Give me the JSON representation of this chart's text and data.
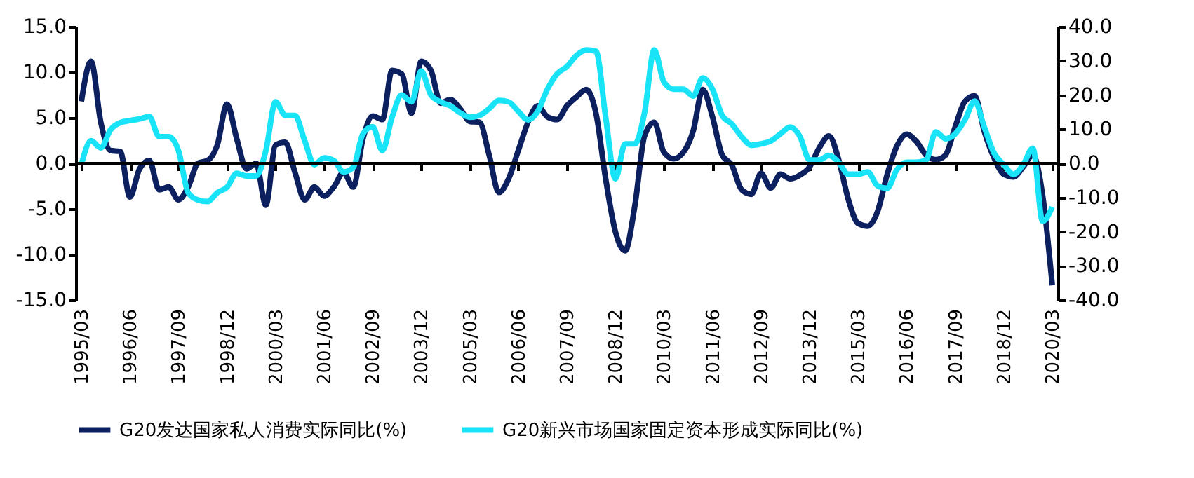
{
  "chart_data": {
    "type": "line",
    "categories": [
      "1995/03",
      null,
      null,
      null,
      null,
      "1996/06",
      null,
      null,
      null,
      null,
      "1997/09",
      null,
      null,
      null,
      null,
      "1998/12",
      null,
      null,
      null,
      null,
      "2000/03",
      null,
      null,
      null,
      null,
      "2001/06",
      null,
      null,
      null,
      null,
      "2002/09",
      null,
      null,
      null,
      null,
      "2003/12",
      null,
      null,
      null,
      null,
      "2005/03",
      null,
      null,
      null,
      null,
      "2006/06",
      null,
      null,
      null,
      null,
      "2007/09",
      null,
      null,
      null,
      null,
      "2008/12",
      null,
      null,
      null,
      null,
      "2010/03",
      null,
      null,
      null,
      null,
      "2011/06",
      null,
      null,
      null,
      null,
      "2012/09",
      null,
      null,
      null,
      null,
      "2013/12",
      null,
      null,
      null,
      null,
      "2015/03",
      null,
      null,
      null,
      null,
      "2016/06",
      null,
      null,
      null,
      null,
      "2017/09",
      null,
      null,
      null,
      null,
      "2018/12",
      null,
      null,
      null,
      null,
      "2020/03"
    ],
    "series": [
      {
        "name": "G20发达国家私人消费实际同比(%)",
        "color": "#0c2060",
        "values": [
          6.8,
          11.2,
          4.5,
          1.4,
          1.3,
          -3.7,
          -0.6,
          0.3,
          -2.9,
          -2.6,
          -4.0,
          -2.6,
          0.0,
          0.3,
          2.0,
          6.5,
          2.7,
          -0.6,
          0.0,
          -4.6,
          2.0,
          2.3,
          -1.0,
          -4.0,
          -2.6,
          -3.6,
          -2.6,
          -1.0,
          -2.6,
          2.7,
          5.2,
          4.8,
          10.2,
          9.8,
          5.5,
          11.2,
          10.2,
          6.6,
          7.0,
          6.0,
          4.6,
          4.5,
          0.9,
          -3.2,
          -1.7,
          1.4,
          4.5,
          6.3,
          5.1,
          4.8,
          6.3,
          7.3,
          8.1,
          5.5,
          -1.7,
          -7.5,
          -9.6,
          -4.7,
          3.0,
          4.5,
          1.2,
          0.5,
          1.2,
          3.5,
          8.1,
          5.1,
          0.9,
          -0.2,
          -2.9,
          -3.4,
          -1.1,
          -2.7,
          -1.2,
          -1.7,
          -1.3,
          -0.4,
          1.7,
          3.0,
          0.4,
          -4.0,
          -6.6,
          -6.9,
          -5.3,
          -1.2,
          1.9,
          3.2,
          2.4,
          0.9,
          0.4,
          0.9,
          4.0,
          6.8,
          7.4,
          3.5,
          0.6,
          -1.2,
          -1.5,
          -0.4,
          0.9,
          -3.5,
          -13.4
        ]
      },
      {
        "name": "G20新兴市场国家固定资本形成实际同比(%)",
        "color": "#19e3f7",
        "axis": "y2",
        "values": [
          -0.4,
          6.6,
          4.5,
          9.8,
          11.9,
          12.5,
          13.0,
          13.7,
          7.8,
          7.8,
          3.7,
          -8.6,
          -10.7,
          -11.2,
          -8.6,
          -7.0,
          -2.9,
          -3.7,
          -3.7,
          3.7,
          18.0,
          14.0,
          14.0,
          6.6,
          -0.4,
          1.6,
          0.8,
          -2.5,
          -1.2,
          8.6,
          10.7,
          3.7,
          13.5,
          20.0,
          18.0,
          27.0,
          20.0,
          18.0,
          16.8,
          14.8,
          13.5,
          14.0,
          16.0,
          18.4,
          18.0,
          15.2,
          12.7,
          15.2,
          21.7,
          26.2,
          28.3,
          31.6,
          33.2,
          32.8,
          13.5,
          -4.5,
          5.7,
          5.7,
          14.8,
          33.2,
          23.8,
          21.7,
          21.7,
          19.7,
          25.0,
          21.7,
          14.0,
          11.5,
          7.8,
          5.3,
          5.7,
          6.5,
          8.6,
          10.6,
          7.9,
          1.0,
          1.0,
          2.3,
          0.3,
          -3.2,
          -3.2,
          -2.5,
          -6.6,
          -7.3,
          -1.8,
          0.3,
          0.3,
          1.0,
          9.2,
          7.2,
          8.6,
          12.7,
          18.2,
          10.6,
          3.0,
          -0.4,
          -3.2,
          -0.4,
          4.4,
          -17.0,
          -12.8
        ]
      }
    ],
    "ylim": [
      -15,
      15
    ],
    "yticks": [
      {
        "value": -15,
        "label": "-15.0"
      },
      {
        "value": -10,
        "label": "-10.0"
      },
      {
        "value": -5,
        "label": "-5.0"
      },
      {
        "value": 0,
        "label": "0.0"
      },
      {
        "value": 5,
        "label": "5.0"
      },
      {
        "value": 10,
        "label": "10.0"
      },
      {
        "value": 15,
        "label": "15.0"
      }
    ],
    "y2lim": [
      -40,
      40
    ],
    "y2ticks": [
      {
        "value": -40,
        "label": "-40.0"
      },
      {
        "value": -30,
        "label": "-30.0"
      },
      {
        "value": -20,
        "label": "-20.0"
      },
      {
        "value": -10,
        "label": "-10.0"
      },
      {
        "value": 0,
        "label": "0.0"
      },
      {
        "value": 10,
        "label": "10.0"
      },
      {
        "value": 20,
        "label": "20.0"
      },
      {
        "value": 30,
        "label": "30.0"
      },
      {
        "value": 40,
        "label": "40.0"
      }
    ],
    "ref_lines": [
      {
        "axis": "y",
        "value": 0,
        "color": "#000000"
      }
    ],
    "grid": false,
    "legend": "bottom",
    "marker": "none",
    "line_style": "solid"
  }
}
